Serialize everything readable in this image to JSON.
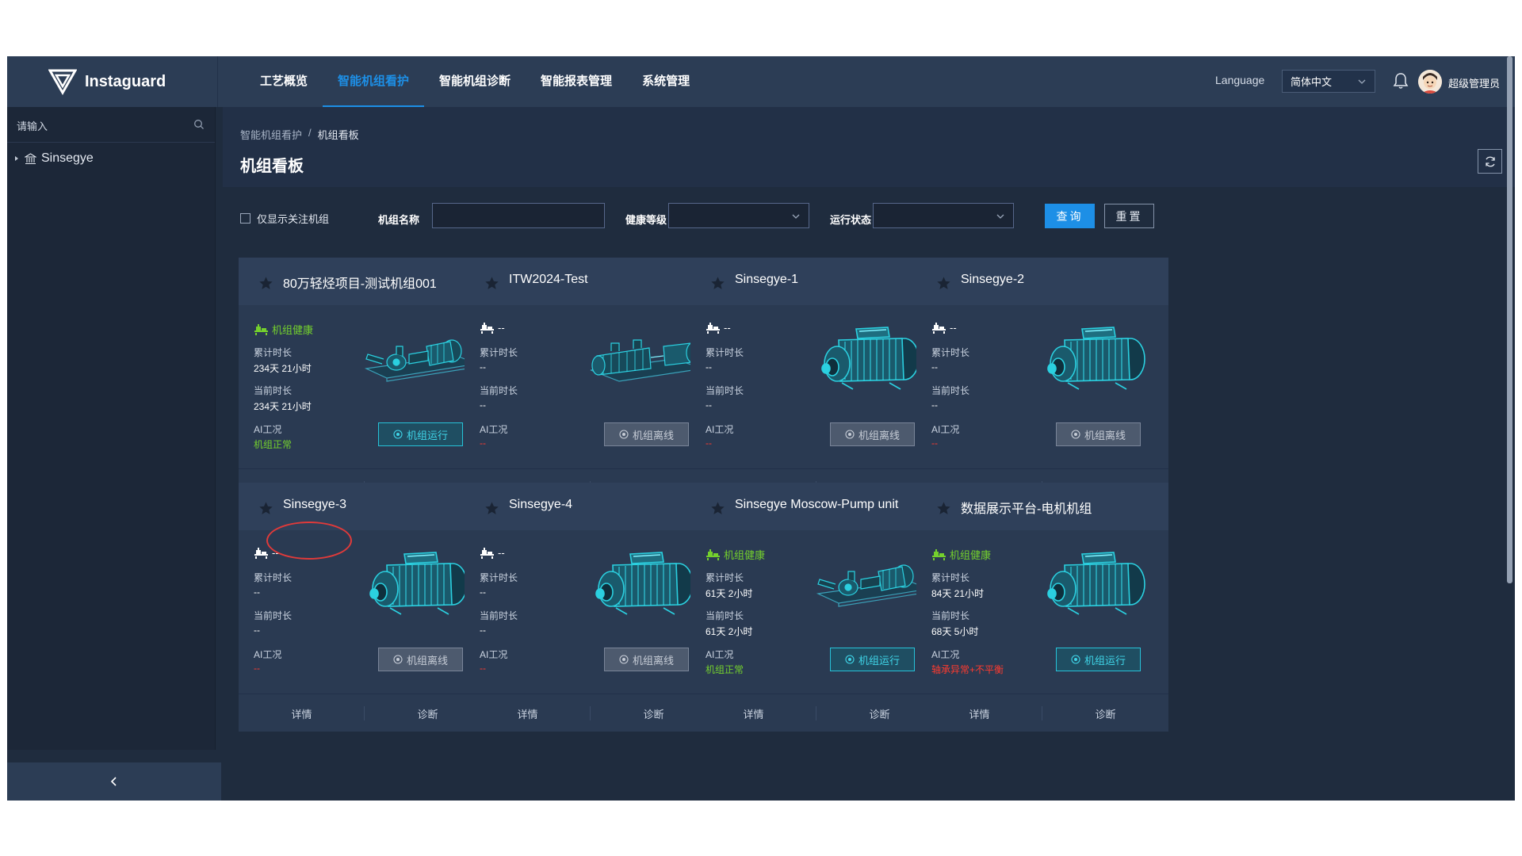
{
  "app": {
    "brand": "Instaguard"
  },
  "nav": [
    {
      "label": "工艺概览",
      "active": false
    },
    {
      "label": "智能机组看护",
      "active": true
    },
    {
      "label": "智能机组诊断",
      "active": false
    },
    {
      "label": "智能报表管理",
      "active": false
    },
    {
      "label": "系统管理",
      "active": false
    }
  ],
  "header": {
    "language_label": "Language",
    "language_value": "简体中文",
    "user_name": "超级管理员"
  },
  "sidebar": {
    "search_placeholder": "请输入",
    "tree_root": "Sinsegye"
  },
  "breadcrumb": {
    "parent": "智能机组看护",
    "separator": "/",
    "current": "机组看板"
  },
  "page_title": "机组看板",
  "filters": {
    "only_followed": "仅显示关注机组",
    "name_label": "机组名称",
    "name_value": "",
    "health_label": "健康等级",
    "health_value": "",
    "run_label": "运行状态",
    "run_value": "",
    "query": "查询",
    "reset": "重置"
  },
  "card_labels": {
    "cumulative": "累计时长",
    "current": "当前时长",
    "ai": "AI工况",
    "detail": "详情",
    "diagnose": "诊断"
  },
  "colors": {
    "accent": "#1d8fe6",
    "health_green": "#74d02d",
    "alarm_red": "#ff3a2f",
    "online_cyan": "#27c2d8"
  },
  "cards": [
    {
      "title": "80万轻烃项目-测试机组001",
      "status": "机组健康",
      "cumulative": "234天 21小时",
      "current": "234天 21小时",
      "ai_value": "机组正常",
      "button": "机组运行",
      "machine_icon": "pump-unit-icon"
    },
    {
      "title": "ITW2024-Test",
      "status": "--",
      "cumulative": "--",
      "current": "--",
      "ai_value": "--",
      "button": "机组离线",
      "machine_icon": "multistage-pump-icon"
    },
    {
      "title": "Sinsegye-1",
      "status": "--",
      "cumulative": "--",
      "current": "--",
      "ai_value": "--",
      "button": "机组离线",
      "machine_icon": "motor-icon"
    },
    {
      "title": "Sinsegye-2",
      "status": "--",
      "cumulative": "--",
      "current": "--",
      "ai_value": "--",
      "button": "机组离线",
      "machine_icon": "motor-icon"
    },
    {
      "title": "Sinsegye-3",
      "status": "--",
      "cumulative": "--",
      "current": "--",
      "ai_value": "--",
      "button": "机组离线",
      "machine_icon": "motor-icon"
    },
    {
      "title": "Sinsegye-4",
      "status": "--",
      "cumulative": "--",
      "current": "--",
      "ai_value": "--",
      "button": "机组离线",
      "machine_icon": "motor-icon"
    },
    {
      "title": "Sinsegye Moscow-Pump unit",
      "status": "机组健康",
      "cumulative": "61天 2小时",
      "current": "61天 2小时",
      "ai_value": "机组正常",
      "button": "机组运行",
      "machine_icon": "pump-unit-icon"
    },
    {
      "title": "数据展示平台-电机机组",
      "status": "机组健康",
      "cumulative": "84天 21小时",
      "current": "68天 5小时",
      "ai_value": "轴承异常+不平衡",
      "button": "机组运行",
      "machine_icon": "motor-icon"
    }
  ]
}
